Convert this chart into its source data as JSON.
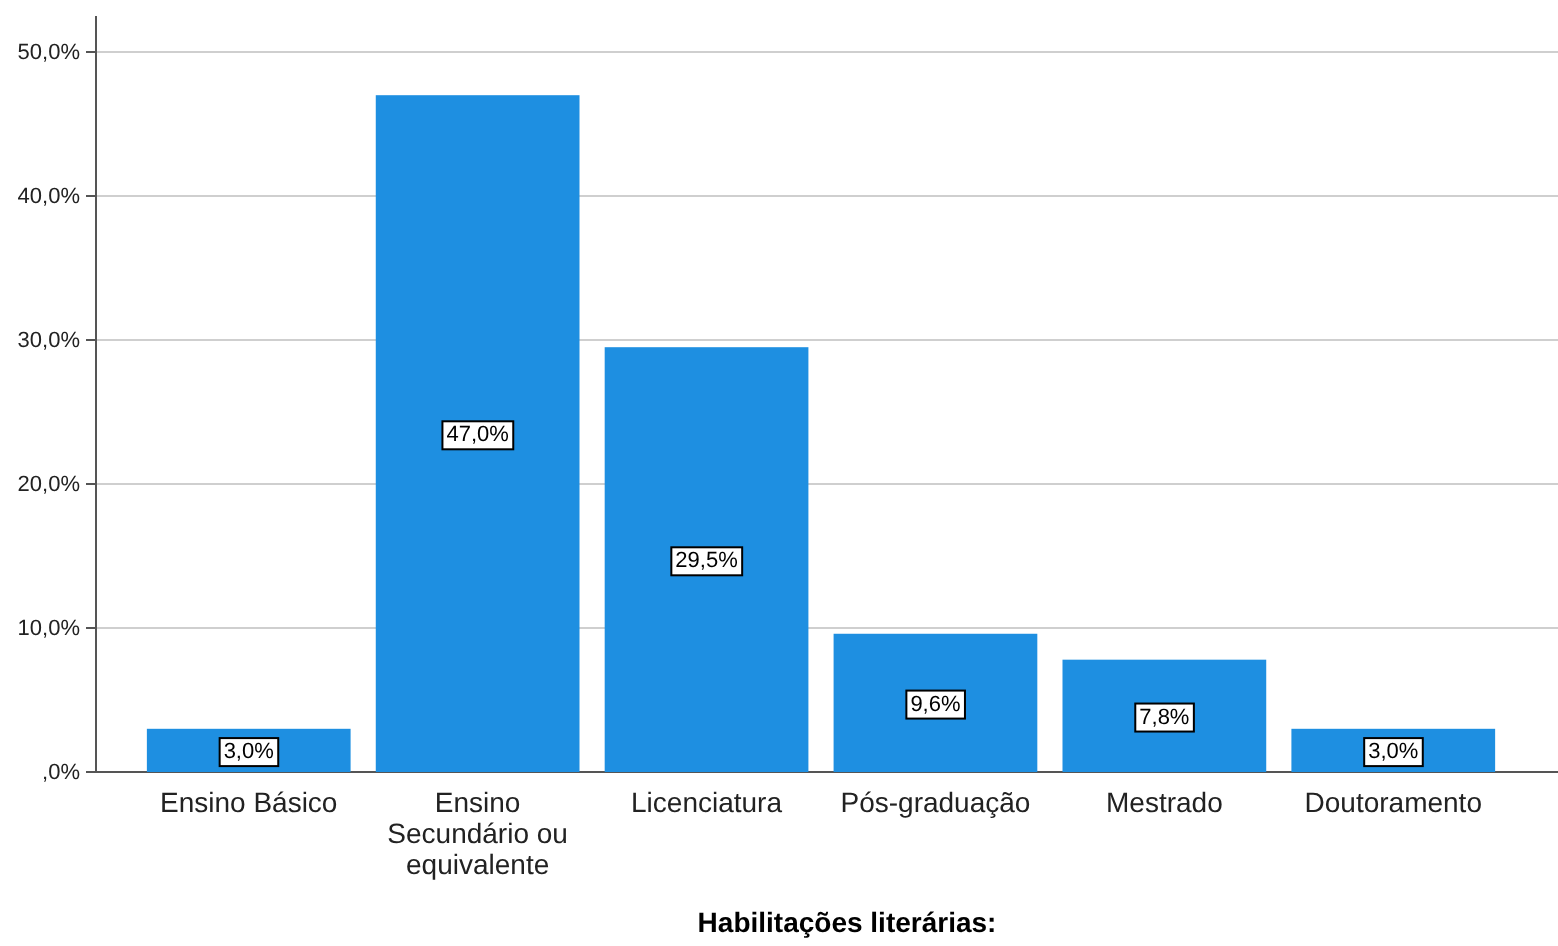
{
  "chart_data": {
    "type": "bar",
    "xlabel": "Habilitações literárias:",
    "categories": [
      "Ensino Básico",
      "Ensino Secundário ou equivalente",
      "Licenciatura",
      "Pós-graduação",
      "Mestrado",
      "Doutoramento"
    ],
    "values": [
      3.0,
      47.0,
      29.5,
      9.6,
      7.8,
      3.0
    ],
    "color": "#1e8fe1",
    "value_labels": [
      "3,0%",
      "47,0%",
      "29,5%",
      "9,6%",
      "7,8%",
      "3,0%"
    ],
    "ylim": [
      0,
      52.5
    ],
    "yticks": [
      {
        "value": 0,
        "label": ",0%"
      },
      {
        "value": 10,
        "label": "10,0%"
      },
      {
        "value": 20,
        "label": "20,0%"
      },
      {
        "value": 30,
        "label": "30,0%"
      },
      {
        "value": 40,
        "label": "40,0%"
      },
      {
        "value": 50,
        "label": "50,0%"
      }
    ],
    "grid": "y"
  }
}
